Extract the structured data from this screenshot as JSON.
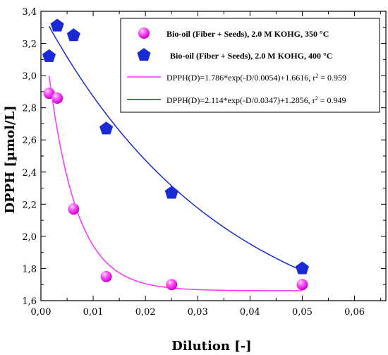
{
  "chart_data": {
    "type": "scatter",
    "xlabel": "Dilution [-]",
    "ylabel": "DPPH [µmol/L]",
    "xlim": [
      0,
      0.066
    ],
    "ylim": [
      1.6,
      3.4
    ],
    "x_ticks": [
      "0,00",
      "0,01",
      "0,02",
      "0,03",
      "0,04",
      "0,05",
      "0,06"
    ],
    "x_tick_values": [
      0,
      0.01,
      0.02,
      0.03,
      0.04,
      0.05,
      0.06
    ],
    "y_ticks": [
      "1,6",
      "1,8",
      "2,0",
      "2,2",
      "2,4",
      "2,6",
      "2,8",
      "3,0",
      "3,2",
      "3,4"
    ],
    "y_tick_values": [
      1.6,
      1.8,
      2.0,
      2.2,
      2.4,
      2.6,
      2.8,
      3.0,
      3.2,
      3.4
    ],
    "legend_position": "top-right",
    "series": [
      {
        "name": "Bio-oil (Fiber + Seeds), 2.0 M KOHG, 350 °C",
        "marker": "sphere",
        "color": "#ff33ff",
        "x": [
          0.0015625,
          0.003125,
          0.00625,
          0.0125,
          0.025,
          0.05
        ],
        "y": [
          2.89,
          2.86,
          2.17,
          1.75,
          1.7,
          1.7
        ]
      },
      {
        "name": "Bio-oil (Fiber + Seeds), 2.0 M KOHG, 400 °C",
        "marker": "pentagon",
        "color": "#1a2bd6",
        "x": [
          0.0015625,
          0.003125,
          0.00625,
          0.0125,
          0.025,
          0.05
        ],
        "y": [
          3.12,
          3.31,
          3.25,
          2.67,
          2.27,
          1.8
        ]
      }
    ],
    "fits": [
      {
        "label": "DPPH(D)=1.786*exp(-D/0.0054)+1.6616, r",
        "sup": "2",
        "suffix": " = 0.959",
        "color": "#ff33ff",
        "A": 1.786,
        "t": 0.0054,
        "y0": 1.6616,
        "x_range": [
          0.0015625,
          0.05
        ]
      },
      {
        "label": "DPPH(D)=2.114*exp(-D/0.0347)+1.2856, r",
        "sup": "2",
        "suffix": " = 0.949",
        "color": "#1a2bd6",
        "A": 2.114,
        "t": 0.0347,
        "y0": 1.2856,
        "x_range": [
          0.0015625,
          0.05
        ]
      }
    ]
  }
}
